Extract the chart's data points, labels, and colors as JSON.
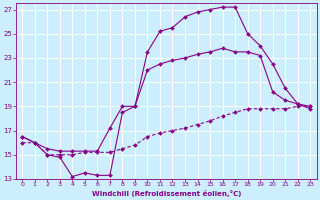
{
  "xlabel": "Windchill (Refroidissement éolien,°C)",
  "bg_color": "#cceeff",
  "grid_color": "#ffffff",
  "line_color": "#880088",
  "xlim": [
    -0.5,
    23.5
  ],
  "ylim": [
    13,
    27.5
  ],
  "xticks": [
    0,
    1,
    2,
    3,
    4,
    5,
    6,
    7,
    8,
    9,
    10,
    11,
    12,
    13,
    14,
    15,
    16,
    17,
    18,
    19,
    20,
    21,
    22,
    23
  ],
  "yticks": [
    13,
    15,
    17,
    19,
    21,
    23,
    25,
    27
  ],
  "line1_x": [
    0,
    1,
    2,
    3,
    4,
    5,
    6,
    7,
    8,
    9,
    10,
    11,
    12,
    13,
    14,
    15,
    16,
    17,
    18,
    19,
    20,
    21,
    22,
    23
  ],
  "line1_y": [
    16.5,
    16.0,
    15.0,
    14.8,
    13.2,
    13.5,
    13.3,
    13.3,
    18.5,
    19.0,
    23.5,
    25.2,
    25.5,
    26.4,
    26.8,
    27.0,
    27.2,
    27.2,
    25.0,
    24.0,
    22.5,
    20.5,
    19.2,
    18.8
  ],
  "line2_x": [
    0,
    1,
    2,
    3,
    4,
    5,
    6,
    7,
    8,
    9,
    10,
    11,
    12,
    13,
    14,
    15,
    16,
    17,
    18,
    19,
    20,
    21,
    22,
    23
  ],
  "line2_y": [
    16.5,
    16.0,
    15.5,
    15.3,
    15.3,
    15.3,
    15.3,
    17.2,
    19.0,
    19.0,
    22.0,
    22.5,
    22.8,
    23.0,
    23.3,
    23.5,
    23.8,
    23.5,
    23.5,
    23.2,
    20.2,
    19.5,
    19.2,
    19.0
  ],
  "line3_x": [
    0,
    1,
    2,
    3,
    4,
    5,
    6,
    7,
    8,
    9,
    10,
    11,
    12,
    13,
    14,
    15,
    16,
    17,
    18,
    19,
    20,
    21,
    22,
    23
  ],
  "line3_y": [
    16.0,
    16.0,
    15.0,
    15.0,
    15.0,
    15.2,
    15.2,
    15.2,
    15.5,
    15.8,
    16.5,
    16.8,
    17.0,
    17.2,
    17.5,
    17.8,
    18.2,
    18.5,
    18.8,
    18.8,
    18.8,
    18.8,
    19.0,
    19.0
  ]
}
